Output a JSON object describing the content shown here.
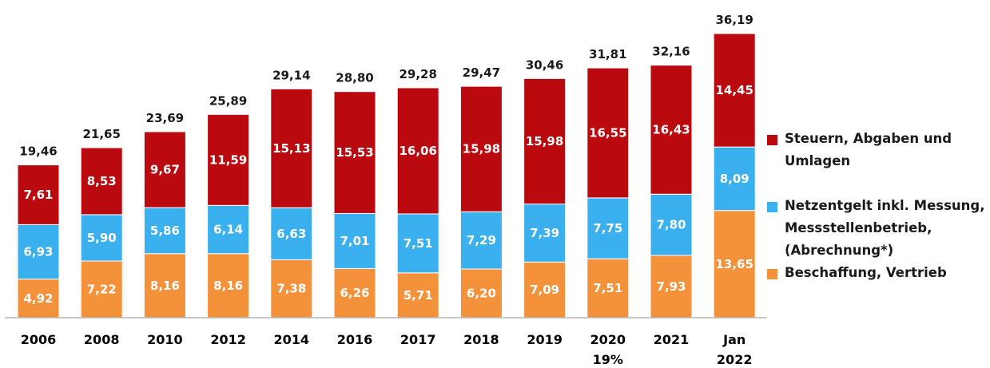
{
  "chart_data": {
    "type": "bar",
    "stacked": true,
    "categories": [
      "2006",
      "2008",
      "2010",
      "2012",
      "2014",
      "2016",
      "2017",
      "2018",
      "2019",
      "2020\n19%",
      "2021",
      "Jan\n2022"
    ],
    "series": [
      {
        "name": "Beschaffung, Vertrieb",
        "color": "#f4923c",
        "values": [
          4.92,
          7.22,
          8.16,
          8.16,
          7.38,
          6.26,
          5.71,
          6.2,
          7.09,
          7.51,
          7.93,
          13.65
        ],
        "labels": [
          "4,92",
          "7,22",
          "8,16",
          "8,16",
          "7,38",
          "6,26",
          "5,71",
          "6,20",
          "7,09",
          "7,51",
          "7,93",
          "13,65"
        ]
      },
      {
        "name": "Netzentgelt inkl. Messung, Messstellenbetrieb, (Abrechnung*)",
        "color": "#3ab0ee",
        "values": [
          6.93,
          5.9,
          5.86,
          6.14,
          6.63,
          7.01,
          7.51,
          7.29,
          7.39,
          7.75,
          7.8,
          8.09
        ],
        "labels": [
          "6,93",
          "5,90",
          "5,86",
          "6,14",
          "6,63",
          "7,01",
          "7,51",
          "7,29",
          "7,39",
          "7,75",
          "7,80",
          "8,09"
        ]
      },
      {
        "name": "Steuern, Abgaben und Umlagen",
        "color": "#bb0a0f",
        "values": [
          7.61,
          8.53,
          9.67,
          11.59,
          15.13,
          15.53,
          16.06,
          15.98,
          15.98,
          16.55,
          16.43,
          14.45
        ],
        "labels": [
          "7,61",
          "8,53",
          "9,67",
          "11,59",
          "15,13",
          "15,53",
          "16,06",
          "15,98",
          "15,98",
          "16,55",
          "16,43",
          "14,45"
        ]
      }
    ],
    "totals": [
      19.46,
      21.65,
      23.69,
      25.89,
      29.14,
      28.8,
      29.28,
      29.47,
      30.46,
      31.81,
      32.16,
      36.19
    ],
    "total_labels": [
      "19,46",
      "21,65",
      "23,69",
      "25,89",
      "29,14",
      "28,80",
      "29,28",
      "29,47",
      "30,46",
      "31,81",
      "32,16",
      "36,19"
    ],
    "legend_order": [
      2,
      1,
      0
    ],
    "legend_position": "right",
    "ylim": [
      0,
      36.19
    ],
    "grid": false,
    "title": "",
    "xlabel": "",
    "ylabel": ""
  }
}
